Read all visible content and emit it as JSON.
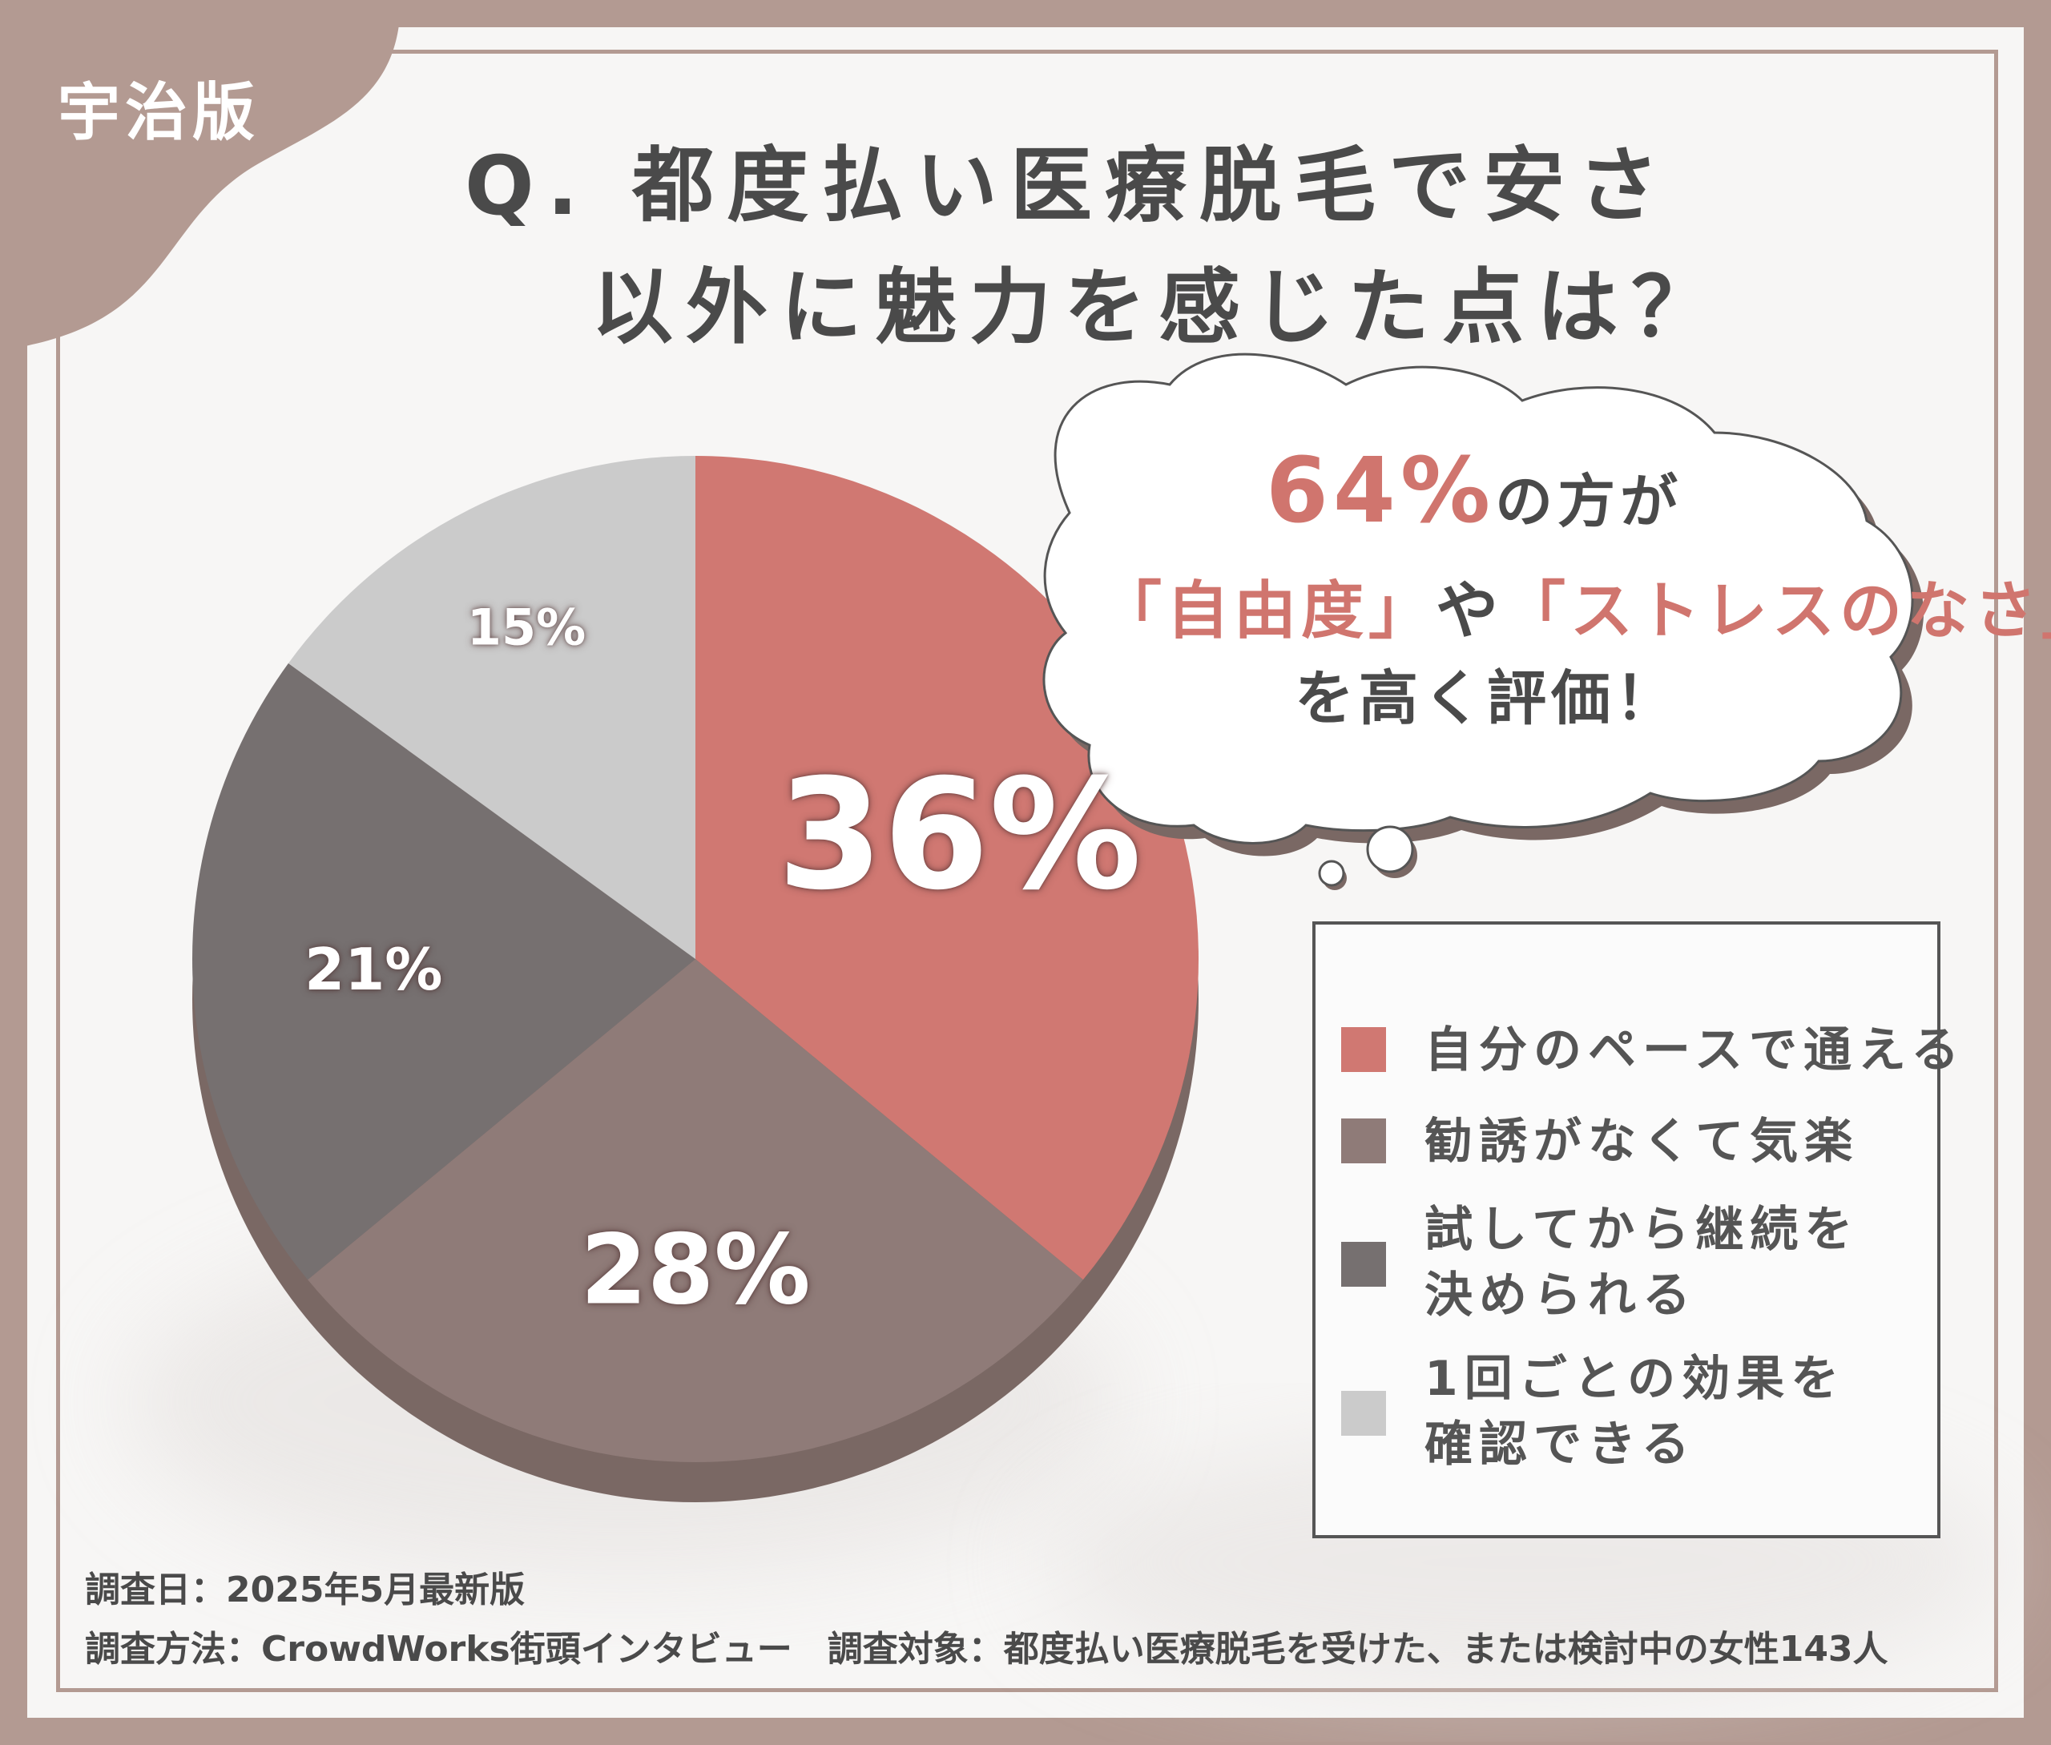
{
  "badge": {
    "label": "宇治版"
  },
  "title": {
    "line1": "Q. 都度払い医療脱毛で安さ",
    "line2": "以外に魅力を感じた点は？"
  },
  "callout": {
    "percent": "64%",
    "line1_rest": "の方が",
    "quote1": "「自由度」",
    "connector": "や",
    "quote2": "「ストレスのなさ」",
    "line3": "を高く評価！"
  },
  "chart_data": {
    "type": "pie",
    "title": "Q. 都度払い医療脱毛で安さ以外に魅力を感じた点は？",
    "slices": [
      {
        "label": "自分のペースで通える",
        "value": 36,
        "display": "36%",
        "color": "#d07872"
      },
      {
        "label": "勧誘がなくて気楽",
        "value": 28,
        "display": "28%",
        "color": "#8f7b78"
      },
      {
        "label": "試してから継続を決められる",
        "value": 21,
        "display": "21%",
        "color": "#767070"
      },
      {
        "label": "1回ごとの効果を確認できる",
        "value": 15,
        "display": "15%",
        "color": "#cbcbcb"
      }
    ],
    "start": "12 o'clock, clockwise",
    "legend_position": "right"
  },
  "legend": {
    "items": [
      {
        "line1": "自分のペースで通える",
        "line2": ""
      },
      {
        "line1": "勧誘がなくて気楽",
        "line2": ""
      },
      {
        "line1": "試してから継続を",
        "line2": "決められる"
      },
      {
        "line1": "1回ごとの効果を",
        "line2": "確認できる"
      }
    ]
  },
  "footer": {
    "line1": "調査日：2025年5月最新版",
    "line2": "調査方法：CrowdWorks街頭インタビュー　調査対象：都度払い医療脱毛を受けた、または検討中の女性143人"
  },
  "colors": {
    "frame": "#b39a92",
    "accent": "#d0756e",
    "text": "#4a4a4a"
  }
}
